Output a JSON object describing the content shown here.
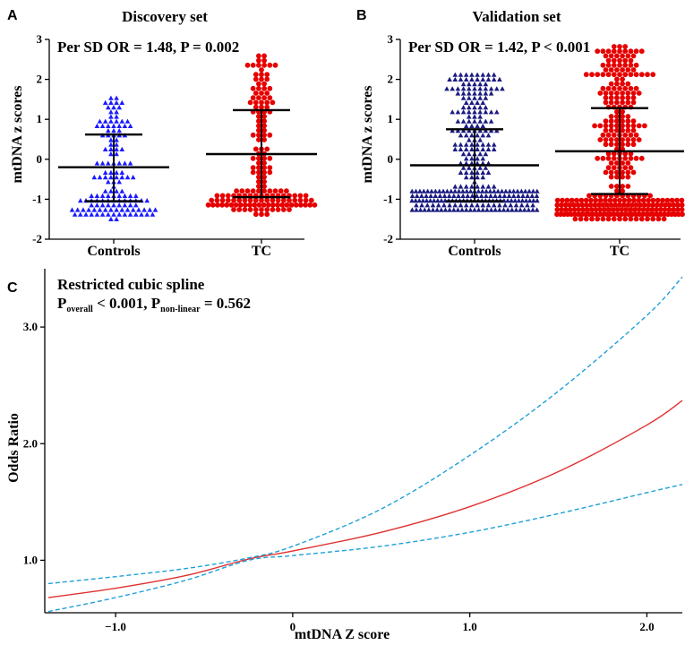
{
  "chart_data": [
    {
      "panel": "A",
      "type": "scatter",
      "title": "Discovery set",
      "annotation": "Per SD OR =  1.48, P = 0.002",
      "ylabel": "mtDNA z scores",
      "xlabel": "",
      "categories": [
        "Controls",
        "TC"
      ],
      "ylim": [
        -2,
        3
      ],
      "yticks": [
        -2,
        -1,
        0,
        1,
        2,
        3
      ],
      "ytick_labels": [
        "-2",
        "-1",
        "0",
        "1",
        "2",
        "3"
      ],
      "summary": [
        {
          "group": "Controls",
          "mean": -0.2,
          "sd_low": -1.05,
          "sd_high": 0.62
        },
        {
          "group": "TC",
          "mean": 0.13,
          "sd_low": -0.95,
          "sd_high": 1.23
        }
      ],
      "series": [
        {
          "name": "Controls",
          "marker": "triangle",
          "color": "#1a1aff",
          "n": 135,
          "min": -1.45,
          "max": 1.6
        },
        {
          "name": "TC",
          "marker": "circle",
          "color": "#e60000",
          "n": 165,
          "min": -1.35,
          "max": 2.6
        }
      ]
    },
    {
      "panel": "B",
      "type": "scatter",
      "title": "Validation set",
      "annotation": "Per SD OR =  1.42, P < 0.001",
      "ylabel": "mtDNA z scores",
      "xlabel": "",
      "categories": [
        "Controls",
        "TC"
      ],
      "ylim": [
        -2,
        3
      ],
      "yticks": [
        -2,
        -1,
        0,
        1,
        2,
        3
      ],
      "ytick_labels": [
        "-2",
        "-1",
        "0",
        "1",
        "2",
        "3"
      ],
      "summary": [
        {
          "group": "Controls",
          "mean": -0.15,
          "sd_low": -1.05,
          "sd_high": 0.75
        },
        {
          "group": "TC",
          "mean": 0.2,
          "sd_low": -0.87,
          "sd_high": 1.28
        }
      ],
      "series": [
        {
          "name": "Controls",
          "marker": "triangle",
          "color": "#1a1a80",
          "n": 300,
          "min": -1.3,
          "max": 2.15
        },
        {
          "name": "TC",
          "marker": "circle",
          "color": "#e60000",
          "n": 330,
          "min": -1.5,
          "max": 2.85
        }
      ]
    },
    {
      "panel": "C",
      "type": "line",
      "title": "Restricted cubic spline",
      "annotation_prefix": "P",
      "annotation_sub1": "overall",
      "annotation_mid": " < 0.001, P",
      "annotation_sub2": "non-linear",
      "annotation_suffix": " = 0.562",
      "xlabel": "mtDNA Z score",
      "ylabel": "Odds Ratio",
      "xlim": [
        -1.4,
        2.2
      ],
      "ylim": [
        0.55,
        3.5
      ],
      "xticks": [
        -1,
        0,
        1,
        2
      ],
      "xtick_labels": [
        "−1.0",
        "0",
        "1.0",
        "2.0"
      ],
      "yticks": [
        1,
        2,
        3
      ],
      "ytick_labels": [
        "1.0",
        "2.0",
        "3.0"
      ],
      "series": [
        {
          "name": "OR",
          "style": "solid",
          "color": "#e03030",
          "x": [
            -1.38,
            -1.0,
            -0.6,
            -0.25,
            0.0,
            0.5,
            1.0,
            1.5,
            2.0,
            2.2
          ],
          "y": [
            0.68,
            0.76,
            0.87,
            1.01,
            1.08,
            1.24,
            1.46,
            1.76,
            2.16,
            2.37
          ]
        },
        {
          "name": "Upper 95% CI",
          "style": "dashed",
          "color": "#1ea0d8",
          "x": [
            -1.38,
            -1.0,
            -0.6,
            -0.25,
            0.0,
            0.5,
            1.0,
            1.5,
            2.0,
            2.2
          ],
          "y": [
            0.8,
            0.86,
            0.93,
            1.02,
            1.12,
            1.44,
            1.9,
            2.45,
            3.1,
            3.43
          ]
        },
        {
          "name": "Lower 95% CI",
          "style": "dashed",
          "color": "#1ea0d8",
          "x": [
            -1.38,
            -1.0,
            -0.6,
            -0.25,
            0.0,
            0.5,
            1.0,
            1.5,
            2.0,
            2.2
          ],
          "y": [
            0.56,
            0.68,
            0.83,
            1.0,
            1.04,
            1.12,
            1.24,
            1.4,
            1.58,
            1.65
          ]
        }
      ]
    }
  ]
}
